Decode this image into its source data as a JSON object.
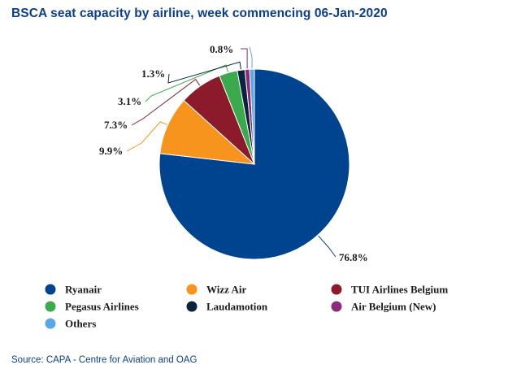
{
  "chart_data": {
    "type": "pie",
    "title": "BSCA seat capacity by airline, week commencing 06-Jan-2020",
    "categories": [
      "Ryanair",
      "Wizz Air",
      "TUI Airlines Belgium",
      "Pegasus Airlines",
      "Laudamotion",
      "Air Belgium (New)",
      "Others"
    ],
    "values": [
      76.8,
      9.9,
      7.3,
      3.1,
      1.3,
      0.8,
      0.8
    ],
    "value_labels": [
      "76.8%",
      "9.9%",
      "7.3%",
      "3.1%",
      "1.3%",
      "0.8%",
      ""
    ],
    "colors": [
      "#00438f",
      "#f7941d",
      "#8b1a2b",
      "#3aaa4c",
      "#0c2340",
      "#8e2a7a",
      "#5aa6e8"
    ],
    "legend_placement": "bottom"
  },
  "source": "Source: CAPA - Centre for Aviation and OAG"
}
